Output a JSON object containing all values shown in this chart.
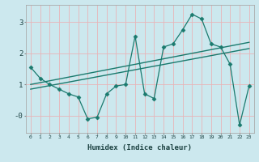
{
  "title": "",
  "xlabel": "Humidex (Indice chaleur)",
  "bg_color": "#cce8ee",
  "grid_color": "#e8b4b8",
  "line_color": "#1a7a6e",
  "xlim": [
    -0.5,
    23.5
  ],
  "ylim": [
    -0.55,
    3.55
  ],
  "xticks": [
    0,
    1,
    2,
    3,
    4,
    5,
    6,
    7,
    8,
    9,
    10,
    11,
    12,
    13,
    14,
    15,
    16,
    17,
    18,
    19,
    20,
    21,
    22,
    23
  ],
  "yticks": [
    0,
    1,
    2,
    3
  ],
  "ytick_labels": [
    "-0",
    "1",
    "2",
    "3"
  ],
  "series1_x": [
    0,
    1,
    2,
    3,
    4,
    5,
    6,
    7,
    8,
    9,
    10,
    11,
    12,
    13,
    14,
    15,
    16,
    17,
    18,
    19,
    20,
    21,
    22,
    23
  ],
  "series1_y": [
    1.55,
    1.2,
    1.0,
    0.85,
    0.7,
    0.6,
    -0.1,
    -0.05,
    0.7,
    0.95,
    1.0,
    2.55,
    0.7,
    0.55,
    2.2,
    2.3,
    2.75,
    3.25,
    3.1,
    2.3,
    2.2,
    1.65,
    -0.3,
    0.95
  ],
  "series2_x": [
    0,
    23
  ],
  "series2_y": [
    0.85,
    2.15
  ],
  "series3_x": [
    0,
    23
  ],
  "series3_y": [
    1.0,
    2.35
  ]
}
